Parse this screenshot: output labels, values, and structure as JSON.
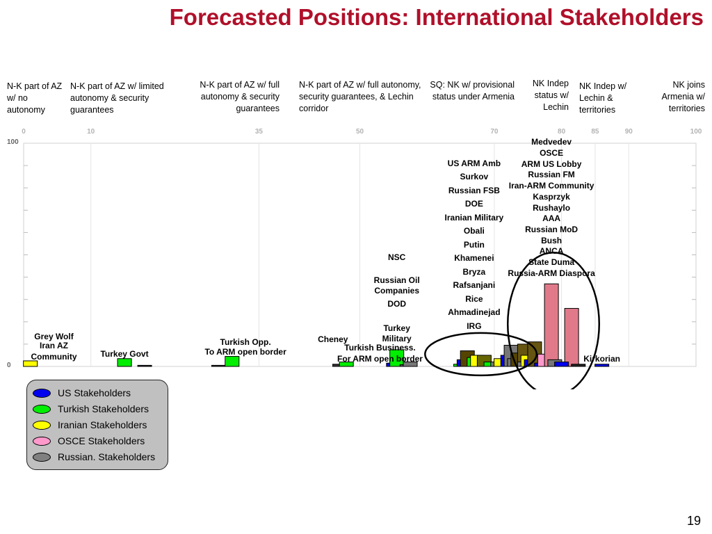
{
  "title": "Forecasted Positions: International Stakeholders",
  "page_number": "19",
  "positions": [
    {
      "text": "N-K part of AZ w/ no autonomy"
    },
    {
      "text": "N-K part of AZ w/ limited autonomy & security guarantees"
    },
    {
      "text": "N-K part of AZ w/ full autonomy & security guarantees"
    },
    {
      "text": "N-K part of AZ w/ full autonomy, security guarantees, & Lechin corridor"
    },
    {
      "text": "SQ: NK w/ provisional status under Armenia"
    },
    {
      "text": "NK Indep status w/ Lechin"
    },
    {
      "text": "NK Indep w/ Lechin & territories"
    },
    {
      "text": "NK joins Armenia w/ territories"
    }
  ],
  "chart_data": {
    "type": "bar",
    "x_ticks": [
      0,
      10,
      35,
      50,
      70,
      80,
      85,
      90,
      100
    ],
    "y_ticks": [
      0,
      100
    ],
    "ylim": [
      0,
      100
    ],
    "xlim": [
      0,
      100
    ],
    "series": [
      {
        "name": "US Stakeholders",
        "color": "#0000ee"
      },
      {
        "name": "Turkish Stakeholders",
        "color": "#00ee00"
      },
      {
        "name": "Iranian Stakeholders",
        "color": "#ffff00"
      },
      {
        "name": "OSCE Stakeholders",
        "color": "#ff99cc"
      },
      {
        "name": "Russian. Stakeholders",
        "color": "#808080"
      }
    ],
    "bars": [
      {
        "x": 1,
        "value": 2.5,
        "color": "#ffff00"
      },
      {
        "x": 15,
        "value": 3.5,
        "color": "#00ee00"
      },
      {
        "x": 18,
        "value": 0.5,
        "color": "#222222"
      },
      {
        "x": 29,
        "value": 0.5,
        "color": "#222222"
      },
      {
        "x": 31,
        "value": 4.5,
        "color": "#00ee00"
      },
      {
        "x": 47,
        "value": 1,
        "color": "#333333"
      },
      {
        "x": 48,
        "value": 2,
        "color": "#00ee00"
      },
      {
        "x": 55,
        "value": 1.5,
        "color": "#0000ee"
      },
      {
        "x": 56,
        "value": 2,
        "color": "#777777"
      },
      {
        "x": 55.5,
        "value": 7.5,
        "color": "#00ee00"
      },
      {
        "x": 57,
        "value": 0.8,
        "color": "#555555"
      },
      {
        "x": 57.5,
        "value": 2,
        "color": "#777777"
      },
      {
        "x": 65,
        "value": 1,
        "color": "#00ee00"
      },
      {
        "x": 65.5,
        "value": 3,
        "color": "#0000ee"
      },
      {
        "x": 66,
        "value": 7,
        "color": "#554400"
      },
      {
        "x": 67,
        "value": 4,
        "color": "#00ee00"
      },
      {
        "x": 67.5,
        "value": 5,
        "color": "#ffff00"
      },
      {
        "x": 68.5,
        "value": 5,
        "color": "#666600"
      },
      {
        "x": 69.5,
        "value": 2,
        "color": "#00ee00"
      },
      {
        "x": 70.5,
        "value": 2,
        "color": "#777777"
      },
      {
        "x": 71,
        "value": 3.5,
        "color": "#ffff00"
      },
      {
        "x": 72,
        "value": 5,
        "color": "#0000ee"
      },
      {
        "x": 72.5,
        "value": 9.5,
        "color": "#777777"
      },
      {
        "x": 73,
        "value": 3.5,
        "color": "#777777"
      },
      {
        "x": 73.5,
        "value": 6,
        "color": "#554400"
      },
      {
        "x": 74.5,
        "value": 10,
        "color": "#665511"
      },
      {
        "x": 74.5,
        "value": 2,
        "color": "#777777"
      },
      {
        "x": 75,
        "value": 5,
        "color": "#ffff00"
      },
      {
        "x": 75.5,
        "value": 3,
        "color": "#0000ee"
      },
      {
        "x": 76,
        "value": 11,
        "color": "#665511"
      },
      {
        "x": 77,
        "value": 1.5,
        "color": "#0000ee"
      },
      {
        "x": 77.5,
        "value": 5.5,
        "color": "#ff99cc"
      },
      {
        "x": 78.5,
        "value": 37,
        "color": "#e07a8a"
      },
      {
        "x": 79,
        "value": 3,
        "color": "#777777"
      },
      {
        "x": 81.5,
        "value": 26,
        "color": "#e07a8a"
      },
      {
        "x": 80,
        "value": 2,
        "color": "#0000ee"
      },
      {
        "x": 82.5,
        "value": 1,
        "color": "#222222"
      },
      {
        "x": 86,
        "value": 1,
        "color": "#0000ee"
      }
    ],
    "annotations": [
      {
        "x": 4.5,
        "value": 13.5,
        "text": "Grey Wolf"
      },
      {
        "x": 4.5,
        "value": 9.5,
        "text": "Iran AZ"
      },
      {
        "x": 4.5,
        "value": 4.5,
        "text": "Community"
      },
      {
        "x": 15,
        "value": 5.5,
        "text": "Turkey Govt"
      },
      {
        "x": 33,
        "value": 11,
        "text": "Turkish Opp."
      },
      {
        "x": 33,
        "value": 6.5,
        "text": "To ARM open border"
      },
      {
        "x": 46,
        "value": 12,
        "text": "Cheney"
      },
      {
        "x": 53,
        "value": 8.5,
        "text": "Turkish Business."
      },
      {
        "x": 53,
        "value": 3.5,
        "text": "For ARM open border"
      },
      {
        "x": 55.5,
        "value": 17,
        "text": "Turkey"
      },
      {
        "x": 55.5,
        "value": 12.5,
        "text": "Military"
      },
      {
        "x": 55.5,
        "value": 28,
        "text": "DOD"
      },
      {
        "x": 55.5,
        "value": 38.5,
        "text": "Russian Oil"
      },
      {
        "x": 55.5,
        "value": 34,
        "text": "Companies"
      },
      {
        "x": 55.5,
        "value": 49,
        "text": "NSC"
      },
      {
        "x": 86,
        "value": 3.5,
        "text": "Kirkorian"
      }
    ],
    "label_columns": [
      {
        "x": 67,
        "top_value": 91,
        "labels": [
          "US ARM Amb",
          "Surkov",
          "Russian FSB",
          "DOE",
          "Iranian Military",
          "Obali",
          "Putin",
          "Khamenei",
          "Bryza",
          "Rafsanjani",
          "Rice",
          "Ahmadinejad",
          "IRG"
        ]
      },
      {
        "x": 78.5,
        "top_value": 100.5,
        "labels": [
          "Medvedev",
          "OSCE",
          "ARM US Lobby",
          "Russian FM",
          "Iran-ARM Community",
          "Kasprzyk",
          "Rushaylo",
          "AAA",
          "Russian MoD",
          "Bush",
          "ANCA",
          "State Duma",
          "Russia-ARM Diaspora"
        ]
      }
    ],
    "highlight_ellipses": [
      {
        "cx": 68,
        "cy": 5.5,
        "rx": 8.3,
        "ry": 9.5
      },
      {
        "cx": 78.8,
        "cy": 19,
        "rx": 6.8,
        "ry": 32
      }
    ]
  }
}
